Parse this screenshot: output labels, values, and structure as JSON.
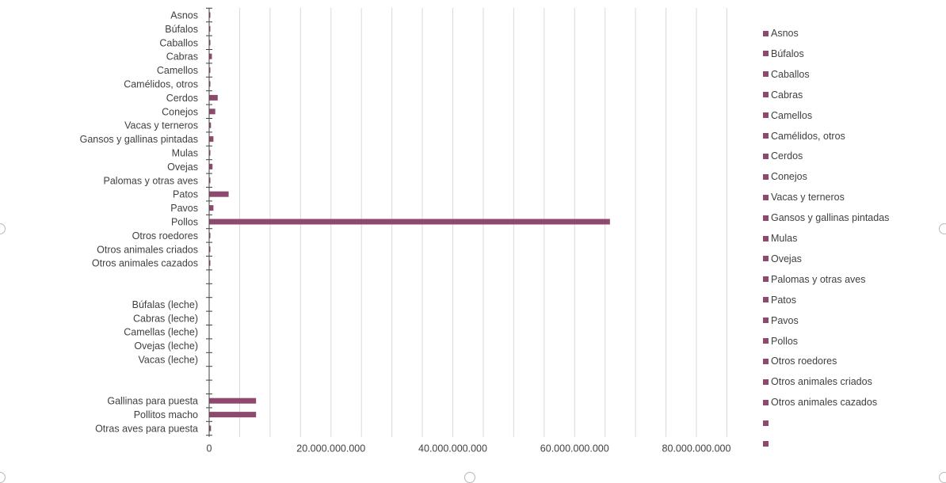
{
  "chart_data": {
    "type": "bar",
    "orientation": "horizontal",
    "categories": [
      "Asnos",
      "Búfalos",
      "Caballos",
      "Cabras",
      "Camellos",
      "Camélidos, otros",
      "Cerdos",
      "Conejos",
      "Vacas y terneros",
      "Gansos y gallinas pintadas",
      "Mulas",
      "Ovejas",
      "Palomas y otras aves",
      "Patos",
      "Pavos",
      "Pollos",
      "Otros roedores",
      "Otros animales criados",
      "Otros animales cazados",
      "",
      "",
      "Búfalas (leche)",
      "Cabras (leche)",
      "Camellas (leche)",
      "Ovejas (leche)",
      "Vacas (leche)",
      "",
      "",
      "Gallinas para puesta",
      "Pollitos macho",
      "Otras aves para puesta"
    ],
    "values": [
      50000000,
      30000000,
      80000000,
      450000000,
      40000000,
      10000000,
      1400000000,
      1000000000,
      300000000,
      700000000,
      10000000,
      550000000,
      200000000,
      3200000000,
      700000000,
      65800000000,
      80000000,
      120000000,
      60000000,
      0,
      0,
      0,
      0,
      0,
      0,
      0,
      0,
      0,
      7700000000,
      7700000000,
      300000000
    ],
    "xlim": [
      0,
      90000000000
    ],
    "x_ticks": [
      "0",
      "20.000.000.000",
      "40.000.000.000",
      "60.000.000.000",
      "80.000.000.000"
    ],
    "x_tick_values": [
      0,
      20000000000,
      40000000000,
      60000000000,
      80000000000
    ],
    "gridlines": true,
    "legend": {
      "placement": "right",
      "entries": [
        "Asnos",
        "Búfalos",
        "Caballos",
        "Cabras",
        "Camellos",
        "Camélidos, otros",
        "Cerdos",
        "Conejos",
        "Vacas y terneros",
        "Gansos y gallinas pintadas",
        "Mulas",
        "Ovejas",
        "Palomas y otras aves",
        "Patos",
        "Pavos",
        "Pollos",
        "Otros roedores",
        "Otros animales criados",
        "Otros animales cazados",
        "",
        ""
      ]
    },
    "bar_color": "#8e4a6e",
    "axis_color": "#404040",
    "grid_color": "#d9d9d9"
  }
}
